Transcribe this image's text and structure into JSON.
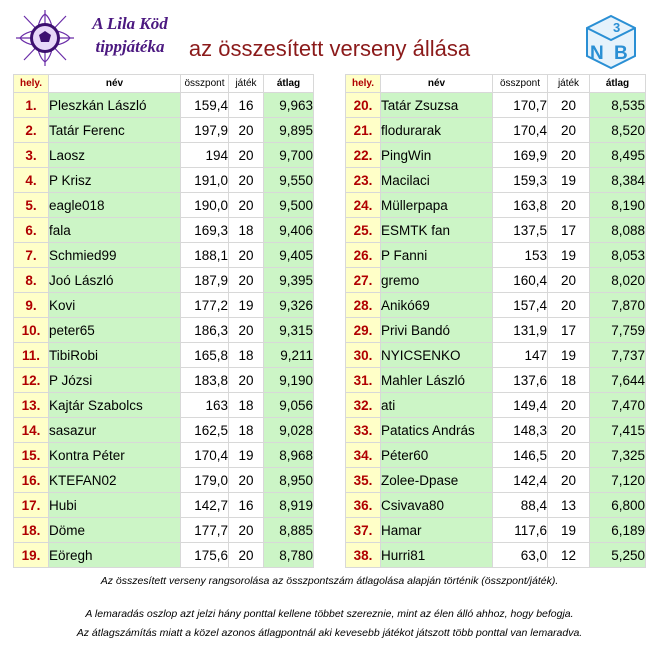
{
  "header": {
    "logo_line1": "A Lila Köd",
    "logo_line2": "tippjátéka",
    "title": "az összesített verseny állása",
    "right_logo": "3NB"
  },
  "columns": {
    "rank": "hely.",
    "name": "név",
    "points": "összpont",
    "games": "játék",
    "average": "átlag"
  },
  "left_rows": [
    {
      "rank": "1.",
      "name": "Pleszkán László",
      "points": "159,4",
      "games": "16",
      "avg": "9,963"
    },
    {
      "rank": "2.",
      "name": "Tatár Ferenc",
      "points": "197,9",
      "games": "20",
      "avg": "9,895"
    },
    {
      "rank": "3.",
      "name": "Laosz",
      "points": "194",
      "games": "20",
      "avg": "9,700"
    },
    {
      "rank": "4.",
      "name": "P Krisz",
      "points": "191,0",
      "games": "20",
      "avg": "9,550"
    },
    {
      "rank": "5.",
      "name": "eagle018",
      "points": "190,0",
      "games": "20",
      "avg": "9,500"
    },
    {
      "rank": "6.",
      "name": "fala",
      "points": "169,3",
      "games": "18",
      "avg": "9,406"
    },
    {
      "rank": "7.",
      "name": "Schmied99",
      "points": "188,1",
      "games": "20",
      "avg": "9,405"
    },
    {
      "rank": "8.",
      "name": "Joó László",
      "points": "187,9",
      "games": "20",
      "avg": "9,395"
    },
    {
      "rank": "9.",
      "name": "Kovi",
      "points": "177,2",
      "games": "19",
      "avg": "9,326"
    },
    {
      "rank": "10.",
      "name": "peter65",
      "points": "186,3",
      "games": "20",
      "avg": "9,315"
    },
    {
      "rank": "11.",
      "name": "TibiRobi",
      "points": "165,8",
      "games": "18",
      "avg": "9,211"
    },
    {
      "rank": "12.",
      "name": "P Józsi",
      "points": "183,8",
      "games": "20",
      "avg": "9,190"
    },
    {
      "rank": "13.",
      "name": "Kajtár Szabolcs",
      "points": "163",
      "games": "18",
      "avg": "9,056"
    },
    {
      "rank": "14.",
      "name": "sasazur",
      "points": "162,5",
      "games": "18",
      "avg": "9,028"
    },
    {
      "rank": "15.",
      "name": "Kontra Péter",
      "points": "170,4",
      "games": "19",
      "avg": "8,968"
    },
    {
      "rank": "16.",
      "name": "KTEFAN02",
      "points": "179,0",
      "games": "20",
      "avg": "8,950"
    },
    {
      "rank": "17.",
      "name": "Hubi",
      "points": "142,7",
      "games": "16",
      "avg": "8,919"
    },
    {
      "rank": "18.",
      "name": "Döme",
      "points": "177,7",
      "games": "20",
      "avg": "8,885"
    },
    {
      "rank": "19.",
      "name": "Eöregh",
      "points": "175,6",
      "games": "20",
      "avg": "8,780"
    }
  ],
  "right_rows": [
    {
      "rank": "20.",
      "name": "Tatár Zsuzsa",
      "points": "170,7",
      "games": "20",
      "avg": "8,535"
    },
    {
      "rank": "21.",
      "name": "flodurarak",
      "points": "170,4",
      "games": "20",
      "avg": "8,520"
    },
    {
      "rank": "22.",
      "name": "PingWin",
      "points": "169,9",
      "games": "20",
      "avg": "8,495"
    },
    {
      "rank": "23.",
      "name": "Macilaci",
      "points": "159,3",
      "games": "19",
      "avg": "8,384"
    },
    {
      "rank": "24.",
      "name": "Müllerpapa",
      "points": "163,8",
      "games": "20",
      "avg": "8,190"
    },
    {
      "rank": "25.",
      "name": "ESMTK fan",
      "points": "137,5",
      "games": "17",
      "avg": "8,088"
    },
    {
      "rank": "26.",
      "name": "P Fanni",
      "points": "153",
      "games": "19",
      "avg": "8,053"
    },
    {
      "rank": "27.",
      "name": "gremo",
      "points": "160,4",
      "games": "20",
      "avg": "8,020"
    },
    {
      "rank": "28.",
      "name": "Anikó69",
      "points": "157,4",
      "games": "20",
      "avg": "7,870"
    },
    {
      "rank": "29.",
      "name": "Privi Bandó",
      "points": "131,9",
      "games": "17",
      "avg": "7,759"
    },
    {
      "rank": "30.",
      "name": "NYICSENKO",
      "points": "147",
      "games": "19",
      "avg": "7,737"
    },
    {
      "rank": "31.",
      "name": "Mahler László",
      "points": "137,6",
      "games": "18",
      "avg": "7,644"
    },
    {
      "rank": "32.",
      "name": "ati",
      "points": "149,4",
      "games": "20",
      "avg": "7,470"
    },
    {
      "rank": "33.",
      "name": "Patatics András",
      "points": "148,3",
      "games": "20",
      "avg": "7,415"
    },
    {
      "rank": "34.",
      "name": "Péter60",
      "points": "146,5",
      "games": "20",
      "avg": "7,325"
    },
    {
      "rank": "35.",
      "name": "Zolee-Dpase",
      "points": "142,4",
      "games": "20",
      "avg": "7,120"
    },
    {
      "rank": "36.",
      "name": "Csivava80",
      "points": "88,4",
      "games": "13",
      "avg": "6,800"
    },
    {
      "rank": "37.",
      "name": "Hamar",
      "points": "117,6",
      "games": "19",
      "avg": "6,189"
    },
    {
      "rank": "38.",
      "name": "Hurri81",
      "points": "63,0",
      "games": "12",
      "avg": "5,250"
    }
  ],
  "footnotes": {
    "line1": "Az összesített verseny rangsorolása az összpontszám átlagolása alapján történik (összpont/játék).",
    "line2": "A  lemaradás oszlop azt jelzi hány ponttal kellene többet szereznie, mint az élen álló ahhoz, hogy befogja.",
    "line3": "Az átlagszámítás miatt a közel azonos átlagpontnál aki kevesebb játékot játszott több ponttal van lemaradva."
  },
  "colors": {
    "rank_bg": "#ffffc8",
    "rank_text": "#b00000",
    "name_bg": "#ccf5c6",
    "title": "#8b1a1a",
    "logo_purple": "#4b1880",
    "logo_blue": "#2a8fd4"
  }
}
